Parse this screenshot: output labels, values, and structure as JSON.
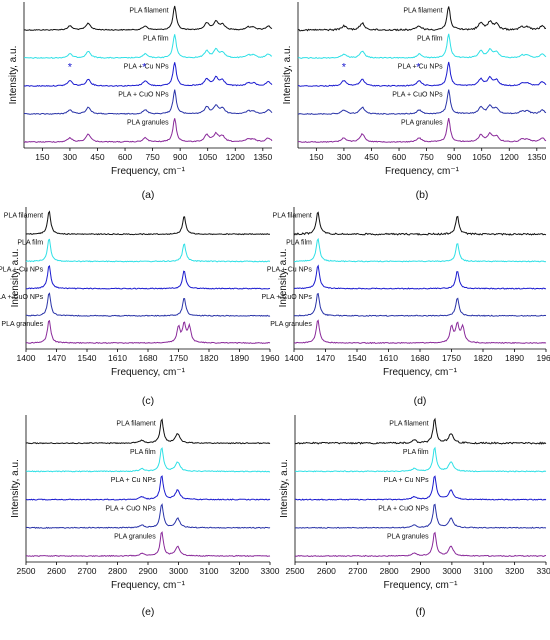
{
  "figure": {
    "series_names": [
      "PLA filament",
      "PLA film",
      "PLA + Cu NPs",
      "PLA + CuO NPs",
      "PLA granules"
    ],
    "series_colors": [
      "#111111",
      "#2fe0e6",
      "#1b1bcf",
      "#2a34a8",
      "#8a2a9a"
    ],
    "ylabel": "Intensity, a.u.",
    "xlabel": "Frequency, cm⁻¹"
  },
  "chart_data": [
    {
      "panel": "(a)",
      "type": "line",
      "xlim": [
        50,
        1400
      ],
      "xticks": [
        150,
        300,
        450,
        600,
        750,
        900,
        1050,
        1200,
        1350
      ],
      "ylabel": "Intensity, a.u.",
      "xlabel": "Frequency, cm⁻¹",
      "grid": false,
      "series": [
        {
          "name": "PLA filament",
          "peaks": [
            [
              300,
              0.15
            ],
            [
              400,
              0.25
            ],
            [
              710,
              0.15
            ],
            [
              870,
              0.9
            ],
            [
              1045,
              0.25
            ],
            [
              1095,
              0.3
            ],
            [
              1130,
              0.2
            ],
            [
              1270,
              0.1
            ],
            [
              1300,
              0.1
            ],
            [
              1380,
              0.15
            ]
          ]
        },
        {
          "name": "PLA film",
          "peaks": [
            [
              300,
              0.15
            ],
            [
              400,
              0.25
            ],
            [
              710,
              0.15
            ],
            [
              870,
              0.9
            ],
            [
              1045,
              0.25
            ],
            [
              1095,
              0.3
            ],
            [
              1130,
              0.2
            ],
            [
              1270,
              0.1
            ],
            [
              1300,
              0.1
            ],
            [
              1380,
              0.15
            ]
          ]
        },
        {
          "name": "PLA + Cu NPs",
          "peaks": [
            [
              300,
              0.2
            ],
            [
              400,
              0.25
            ],
            [
              710,
              0.2
            ],
            [
              870,
              0.9
            ],
            [
              1045,
              0.25
            ],
            [
              1095,
              0.3
            ],
            [
              1130,
              0.2
            ],
            [
              1270,
              0.1
            ],
            [
              1300,
              0.1
            ],
            [
              1380,
              0.15
            ]
          ]
        },
        {
          "name": "PLA + CuO NPs",
          "peaks": [
            [
              300,
              0.15
            ],
            [
              400,
              0.25
            ],
            [
              710,
              0.15
            ],
            [
              870,
              0.9
            ],
            [
              1045,
              0.25
            ],
            [
              1095,
              0.3
            ],
            [
              1130,
              0.2
            ],
            [
              1270,
              0.1
            ],
            [
              1300,
              0.1
            ],
            [
              1380,
              0.15
            ]
          ]
        },
        {
          "name": "PLA granules",
          "peaks": [
            [
              300,
              0.15
            ],
            [
              400,
              0.3
            ],
            [
              710,
              0.15
            ],
            [
              870,
              0.9
            ],
            [
              1045,
              0.25
            ],
            [
              1095,
              0.3
            ],
            [
              1130,
              0.2
            ],
            [
              1270,
              0.1
            ],
            [
              1300,
              0.1
            ],
            [
              1380,
              0.15
            ]
          ]
        }
      ],
      "annotations": [
        {
          "text": "*",
          "series": "PLA + Cu NPs",
          "x": 300
        },
        {
          "text": "*",
          "series": "PLA + Cu NPs",
          "x": 705
        }
      ]
    },
    {
      "panel": "(b)",
      "type": "line",
      "xlim": [
        50,
        1400
      ],
      "xticks": [
        150,
        300,
        450,
        600,
        750,
        900,
        1050,
        1200,
        1350
      ],
      "ylabel": "Intensity, a.u.",
      "xlabel": "Frequency, cm⁻¹",
      "grid": false,
      "series": [
        {
          "name": "PLA filament",
          "peaks": [
            [
              300,
              0.15
            ],
            [
              400,
              0.25
            ],
            [
              710,
              0.15
            ],
            [
              870,
              0.9
            ],
            [
              1045,
              0.25
            ],
            [
              1095,
              0.3
            ],
            [
              1130,
              0.2
            ],
            [
              1270,
              0.1
            ],
            [
              1300,
              0.1
            ],
            [
              1380,
              0.15
            ]
          ]
        },
        {
          "name": "PLA film",
          "peaks": [
            [
              300,
              0.15
            ],
            [
              400,
              0.25
            ],
            [
              710,
              0.15
            ],
            [
              870,
              0.9
            ],
            [
              1045,
              0.25
            ],
            [
              1095,
              0.3
            ],
            [
              1130,
              0.2
            ],
            [
              1270,
              0.1
            ],
            [
              1300,
              0.1
            ],
            [
              1380,
              0.15
            ]
          ]
        },
        {
          "name": "PLA + Cu NPs",
          "peaks": [
            [
              300,
              0.2
            ],
            [
              400,
              0.25
            ],
            [
              710,
              0.2
            ],
            [
              870,
              0.9
            ],
            [
              1045,
              0.25
            ],
            [
              1095,
              0.3
            ],
            [
              1130,
              0.2
            ],
            [
              1270,
              0.1
            ],
            [
              1300,
              0.1
            ],
            [
              1380,
              0.15
            ]
          ]
        },
        {
          "name": "PLA + CuO NPs",
          "peaks": [
            [
              300,
              0.15
            ],
            [
              400,
              0.25
            ],
            [
              710,
              0.15
            ],
            [
              870,
              0.9
            ],
            [
              1045,
              0.25
            ],
            [
              1095,
              0.3
            ],
            [
              1130,
              0.2
            ],
            [
              1270,
              0.1
            ],
            [
              1300,
              0.1
            ],
            [
              1380,
              0.15
            ]
          ]
        },
        {
          "name": "PLA granules",
          "peaks": [
            [
              300,
              0.15
            ],
            [
              400,
              0.3
            ],
            [
              710,
              0.15
            ],
            [
              870,
              0.9
            ],
            [
              1045,
              0.25
            ],
            [
              1095,
              0.3
            ],
            [
              1130,
              0.2
            ],
            [
              1270,
              0.1
            ],
            [
              1300,
              0.1
            ],
            [
              1380,
              0.15
            ]
          ]
        }
      ],
      "annotations": [
        {
          "text": "*",
          "series": "PLA + Cu NPs",
          "x": 300
        },
        {
          "text": "*",
          "series": "PLA + Cu NPs",
          "x": 705
        }
      ]
    },
    {
      "panel": "(c)",
      "type": "line",
      "xlim": [
        1400,
        1960
      ],
      "xticks": [
        1400,
        1470,
        1540,
        1610,
        1680,
        1750,
        1820,
        1890,
        1960
      ],
      "ylabel": "Intensity, a.u.",
      "xlabel": "Frequency, cm⁻¹",
      "grid": false,
      "series": [
        {
          "name": "PLA filament",
          "peaks": [
            [
              1453,
              0.9
            ],
            [
              1763,
              0.7
            ]
          ]
        },
        {
          "name": "PLA film",
          "peaks": [
            [
              1453,
              0.9
            ],
            [
              1763,
              0.7
            ]
          ]
        },
        {
          "name": "PLA + Cu NPs",
          "peaks": [
            [
              1453,
              0.9
            ],
            [
              1763,
              0.7
            ]
          ]
        },
        {
          "name": "PLA + CuO NPs",
          "peaks": [
            [
              1453,
              0.9
            ],
            [
              1763,
              0.7
            ]
          ]
        },
        {
          "name": "PLA granules",
          "peaks": [
            [
              1453,
              0.9
            ],
            [
              1750,
              0.6
            ],
            [
              1763,
              0.7
            ],
            [
              1775,
              0.6
            ]
          ]
        }
      ]
    },
    {
      "panel": "(d)",
      "type": "line",
      "xlim": [
        1400,
        1960
      ],
      "xticks": [
        1400,
        1470,
        1540,
        1610,
        1680,
        1750,
        1820,
        1890,
        1960
      ],
      "ylabel": "Intensity, a.u.",
      "xlabel": "Frequency, cm⁻¹",
      "grid": false,
      "series": [
        {
          "name": "PLA filament",
          "peaks": [
            [
              1453,
              0.9
            ],
            [
              1763,
              0.7
            ]
          ]
        },
        {
          "name": "PLA film",
          "peaks": [
            [
              1453,
              0.9
            ],
            [
              1763,
              0.7
            ]
          ]
        },
        {
          "name": "PLA + Cu NPs",
          "peaks": [
            [
              1453,
              0.9
            ],
            [
              1763,
              0.7
            ]
          ]
        },
        {
          "name": "PLA + CuO NPs",
          "peaks": [
            [
              1453,
              0.9
            ],
            [
              1763,
              0.7
            ]
          ]
        },
        {
          "name": "PLA granules",
          "peaks": [
            [
              1453,
              0.9
            ],
            [
              1750,
              0.6
            ],
            [
              1763,
              0.7
            ],
            [
              1775,
              0.6
            ]
          ]
        }
      ]
    },
    {
      "panel": "(e)",
      "type": "line",
      "xlim": [
        2500,
        3300
      ],
      "xticks": [
        2500,
        2600,
        2700,
        2800,
        2900,
        3000,
        3100,
        3200,
        3300
      ],
      "ylabel": "Intensity, a.u.",
      "xlabel": "Frequency, cm⁻¹",
      "grid": false,
      "series": [
        {
          "name": "PLA filament",
          "peaks": [
            [
              2880,
              0.1
            ],
            [
              2945,
              0.9
            ],
            [
              2997,
              0.35
            ]
          ]
        },
        {
          "name": "PLA film",
          "peaks": [
            [
              2880,
              0.1
            ],
            [
              2945,
              0.9
            ],
            [
              2997,
              0.35
            ]
          ]
        },
        {
          "name": "PLA + Cu NPs",
          "peaks": [
            [
              2880,
              0.1
            ],
            [
              2945,
              0.9
            ],
            [
              2997,
              0.35
            ]
          ]
        },
        {
          "name": "PLA + CuO NPs",
          "peaks": [
            [
              2880,
              0.1
            ],
            [
              2945,
              0.9
            ],
            [
              2997,
              0.35
            ]
          ]
        },
        {
          "name": "PLA granules",
          "peaks": [
            [
              2880,
              0.1
            ],
            [
              2945,
              0.9
            ],
            [
              2997,
              0.35
            ]
          ]
        }
      ]
    },
    {
      "panel": "(f)",
      "type": "line",
      "xlim": [
        2500,
        3300
      ],
      "xticks": [
        2500,
        2600,
        2700,
        2800,
        2900,
        3000,
        3100,
        3200,
        3300
      ],
      "ylabel": "Intensity, a.u.",
      "xlabel": "Frequency, cm⁻¹",
      "grid": false,
      "series": [
        {
          "name": "PLA filament",
          "peaks": [
            [
              2880,
              0.1
            ],
            [
              2945,
              0.9
            ],
            [
              2997,
              0.35
            ]
          ]
        },
        {
          "name": "PLA film",
          "peaks": [
            [
              2880,
              0.1
            ],
            [
              2945,
              0.9
            ],
            [
              2997,
              0.35
            ]
          ]
        },
        {
          "name": "PLA + Cu NPs",
          "peaks": [
            [
              2880,
              0.1
            ],
            [
              2945,
              0.9
            ],
            [
              2997,
              0.35
            ]
          ]
        },
        {
          "name": "PLA + CuO NPs",
          "peaks": [
            [
              2880,
              0.1
            ],
            [
              2945,
              0.9
            ],
            [
              2997,
              0.35
            ]
          ]
        },
        {
          "name": "PLA granules",
          "peaks": [
            [
              2880,
              0.1
            ],
            [
              2945,
              0.9
            ],
            [
              2997,
              0.35
            ]
          ]
        }
      ]
    }
  ]
}
